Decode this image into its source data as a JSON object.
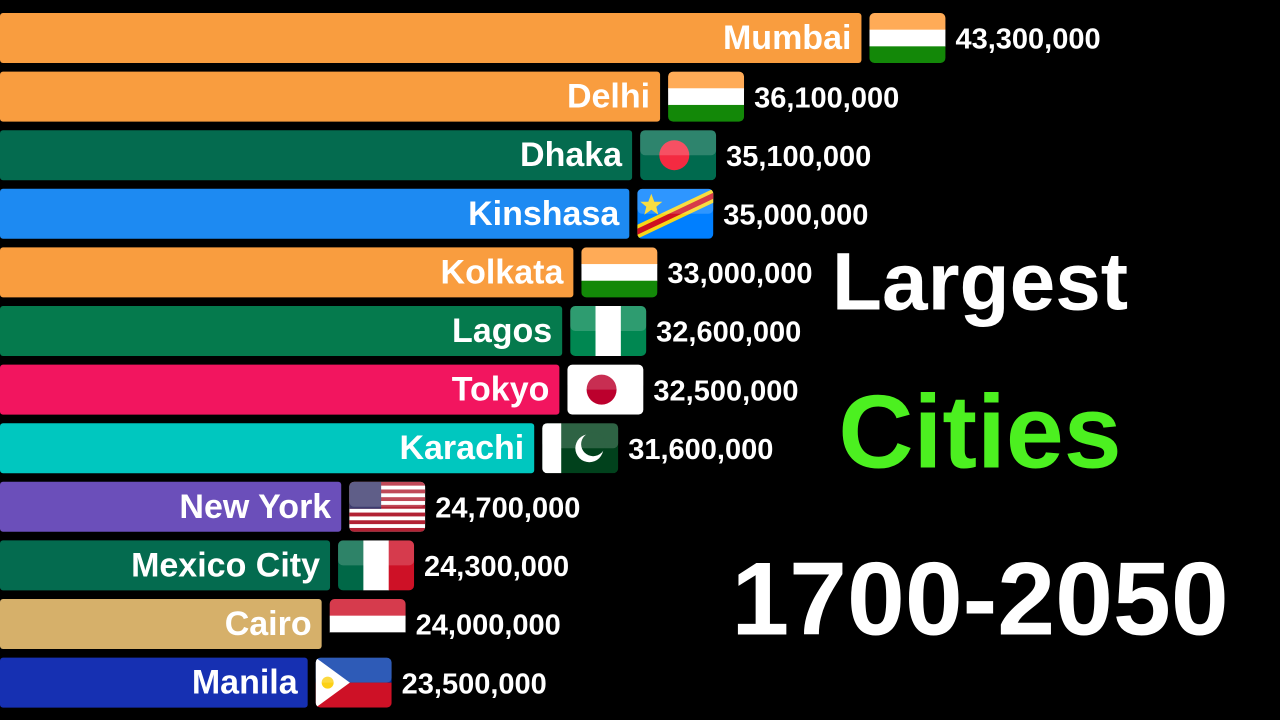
{
  "chart_data": {
    "type": "bar",
    "orientation": "horizontal",
    "title_lines": [
      "Largest",
      "Cities",
      "1700-2050"
    ],
    "title_colors": [
      "#ffffff",
      "#4cf020",
      "#ffffff"
    ],
    "categories": [
      "Mumbai",
      "Delhi",
      "Dhaka",
      "Kinshasa",
      "Kolkata",
      "Lagos",
      "Tokyo",
      "Karachi",
      "New York",
      "Mexico City",
      "Cairo",
      "Manila"
    ],
    "values": [
      43300000,
      36100000,
      35100000,
      35000000,
      33000000,
      32600000,
      32500000,
      31600000,
      24700000,
      24300000,
      24000000,
      23500000
    ],
    "value_labels": [
      "43,300,000",
      "36,100,000",
      "35,100,000",
      "35,000,000",
      "33,000,000",
      "32,600,000",
      "32,500,000",
      "31,600,000",
      "24,700,000",
      "24,300,000",
      "24,000,000",
      "23,500,000"
    ],
    "colors": [
      "#f99d3f",
      "#f99d3f",
      "#046b4f",
      "#1d8af2",
      "#f99d3f",
      "#057a4d",
      "#f2155f",
      "#00c7bf",
      "#6b4fba",
      "#046b4f",
      "#d6b06a",
      "#1630b2"
    ],
    "xlim": [
      12500000,
      45000000
    ]
  }
}
